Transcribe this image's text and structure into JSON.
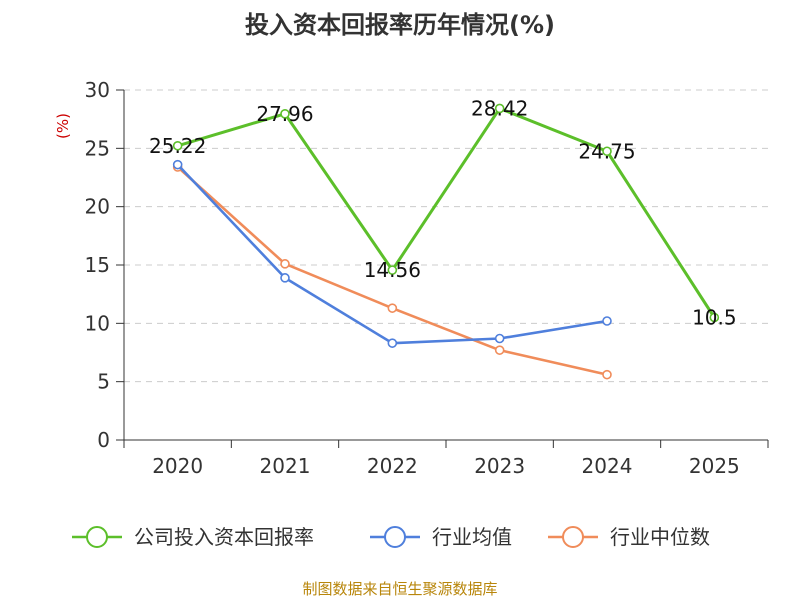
{
  "chart_data": {
    "type": "line",
    "title": "投入资本回报率历年情况(%)",
    "ylabel": "(%)",
    "xlabel": "",
    "categories": [
      "2020",
      "2021",
      "2022",
      "2023",
      "2024",
      "2025"
    ],
    "ylim": [
      0,
      30
    ],
    "yticks": [
      0,
      5,
      10,
      15,
      20,
      25,
      30
    ],
    "grid": true,
    "legend_position": "bottom",
    "series": [
      {
        "name": "公司投入资本回报率",
        "color": "#5cbf2a",
        "values": [
          25.22,
          27.96,
          14.56,
          28.42,
          24.75,
          10.5
        ],
        "labels": [
          "25.22",
          "27.96",
          "14.56",
          "28.42",
          "24.75",
          "10.5"
        ]
      },
      {
        "name": "行业均值",
        "color": "#4f7fdc",
        "values": [
          23.6,
          13.9,
          8.3,
          8.7,
          10.2,
          null
        ]
      },
      {
        "name": "行业中位数",
        "color": "#f08c5a",
        "values": [
          23.4,
          15.1,
          11.3,
          7.7,
          5.6,
          null
        ]
      }
    ]
  },
  "source": "制图数据来自恒生聚源数据库"
}
